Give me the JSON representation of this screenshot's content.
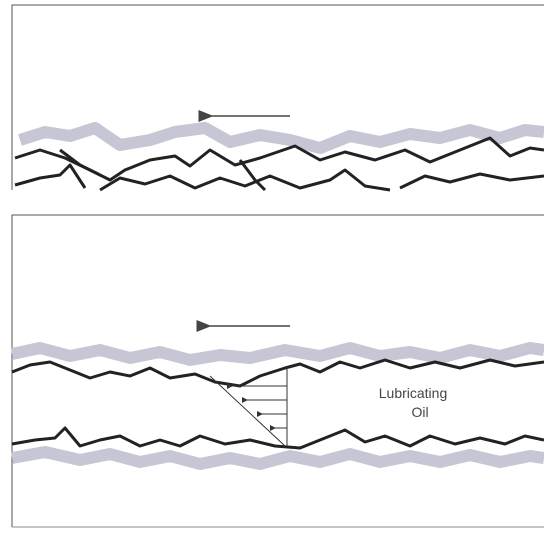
{
  "labels": {
    "lubricant_line1": "Lubricating",
    "lubricant_line2": "Oil"
  }
}
